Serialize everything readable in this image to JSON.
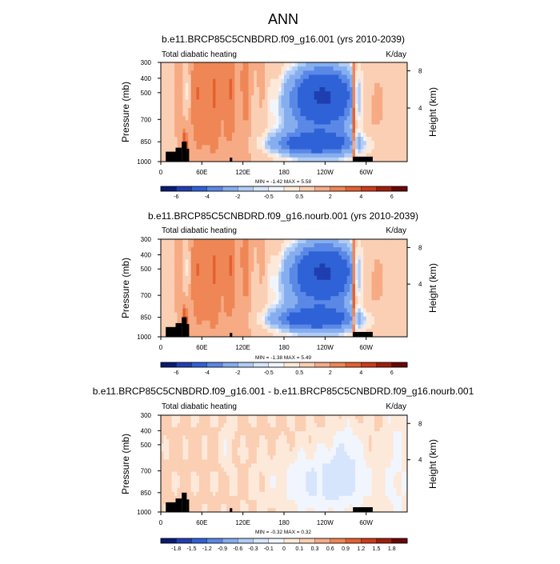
{
  "page_title": "ANN",
  "chart_data": [
    {
      "type": "heatmap",
      "title": "b.e11.BRCP85C5CNBDRD.f09_g16.001 (yrs 2010-2039)",
      "left_label": "Total diabatic heating",
      "right_label": "K/day",
      "ylabel": "Pressure (mb)",
      "ylabel_right": "Height (km)",
      "y_ticks": [
        "300",
        "400",
        "500",
        "700",
        "850",
        "1000"
      ],
      "y_right_ticks": [
        "8",
        "4"
      ],
      "x_ticks": [
        "0",
        "60E",
        "120E",
        "180",
        "120W",
        "60W"
      ],
      "stats": "MIN =  -1.42  MAX =   5.58",
      "colorbar_labels": [
        "-6",
        "-4",
        "-2",
        "-0.5",
        "0.5",
        "2",
        "4",
        "6"
      ],
      "colorbar_colors": [
        "#0a1a78",
        "#1e3fb0",
        "#2f62d6",
        "#5a88e6",
        "#86aeef",
        "#b1cdf6",
        "#d6e5fb",
        "#f1f5fd",
        "#fde9da",
        "#fbcfb3",
        "#f6ab85",
        "#ef8655",
        "#e5602f",
        "#cd3b18",
        "#a01d0c",
        "#6b0605"
      ],
      "field": "full"
    },
    {
      "type": "heatmap",
      "title": "b.e11.BRCP85C5CNBDRD.f09_g16.nourb.001 (yrs 2010-2039)",
      "left_label": "Total diabatic heating",
      "right_label": "K/day",
      "ylabel": "Pressure (mb)",
      "ylabel_right": "Height (km)",
      "y_ticks": [
        "300",
        "400",
        "500",
        "700",
        "850",
        "1000"
      ],
      "y_right_ticks": [
        "8",
        "4"
      ],
      "x_ticks": [
        "0",
        "60E",
        "120E",
        "180",
        "120W",
        "60W"
      ],
      "stats": "MIN =  -1.38  MAX =   5.49",
      "colorbar_labels": [
        "-6",
        "-4",
        "-2",
        "-0.5",
        "0.5",
        "2",
        "4",
        "6"
      ],
      "colorbar_colors": [
        "#0a1a78",
        "#1e3fb0",
        "#2f62d6",
        "#5a88e6",
        "#86aeef",
        "#b1cdf6",
        "#d6e5fb",
        "#f1f5fd",
        "#fde9da",
        "#fbcfb3",
        "#f6ab85",
        "#ef8655",
        "#e5602f",
        "#cd3b18",
        "#a01d0c",
        "#6b0605"
      ],
      "field": "full"
    },
    {
      "type": "heatmap",
      "title": "b.e11.BRCP85C5CNBDRD.f09_g16.001 - b.e11.BRCP85C5CNBDRD.f09_g16.nourb.001",
      "left_label": "Total diabatic heating",
      "right_label": "K/day",
      "ylabel": "Pressure (mb)",
      "ylabel_right": "Height (km)",
      "y_ticks": [
        "300",
        "400",
        "500",
        "700",
        "850",
        "1000"
      ],
      "y_right_ticks": [
        "8",
        "4"
      ],
      "x_ticks": [
        "0",
        "60E",
        "120E",
        "180",
        "120W",
        "60W"
      ],
      "stats": "MIN =  -0.32  MAX =   0.32",
      "colorbar_labels": [
        "-1.8",
        "-1.5",
        "-1.2",
        "-0.9",
        "-0.6",
        "-0.3",
        "-0.1",
        "0",
        "0.1",
        "0.3",
        "0.6",
        "0.9",
        "1.2",
        "1.5",
        "1.8"
      ],
      "colorbar_colors": [
        "#0a1a78",
        "#1e3fb0",
        "#2f62d6",
        "#5a88e6",
        "#86aeef",
        "#b1cdf6",
        "#d6e5fb",
        "#f1f5fd",
        "#fde9da",
        "#fbcfb3",
        "#f6ab85",
        "#ef8655",
        "#e5602f",
        "#cd3b18",
        "#a01d0c",
        "#6b0605"
      ],
      "field": "diff"
    }
  ]
}
